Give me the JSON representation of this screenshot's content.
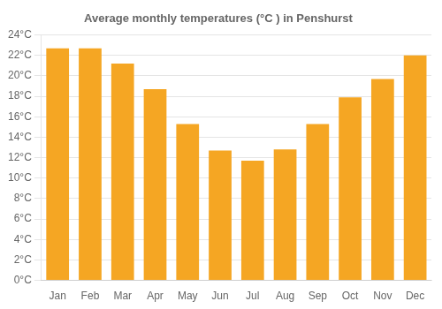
{
  "chart_data": {
    "type": "bar",
    "title": "Average monthly temperatures (°C ) in Penshurst",
    "categories": [
      "Jan",
      "Feb",
      "Mar",
      "Apr",
      "May",
      "Jun",
      "Jul",
      "Aug",
      "Sep",
      "Oct",
      "Nov",
      "Dec"
    ],
    "values": [
      22.7,
      22.7,
      21.2,
      18.7,
      15.3,
      12.7,
      11.7,
      12.8,
      15.3,
      17.9,
      19.7,
      22.0
    ],
    "color": "#F5A623",
    "ylim": [
      0,
      24
    ],
    "yticks": [
      {
        "value": 0,
        "label": "0°C"
      },
      {
        "value": 2,
        "label": "2°C"
      },
      {
        "value": 4,
        "label": "4°C"
      },
      {
        "value": 6,
        "label": "6°C"
      },
      {
        "value": 8,
        "label": "8°C"
      },
      {
        "value": 10,
        "label": "10°C"
      },
      {
        "value": 12,
        "label": "12°C"
      },
      {
        "value": 14,
        "label": "14°C"
      },
      {
        "value": 16,
        "label": "16°C"
      },
      {
        "value": 18,
        "label": "18°C"
      },
      {
        "value": 20,
        "label": "20°C"
      },
      {
        "value": 22,
        "label": "22°C"
      },
      {
        "value": 24,
        "label": "24°C"
      }
    ],
    "grid": true
  }
}
